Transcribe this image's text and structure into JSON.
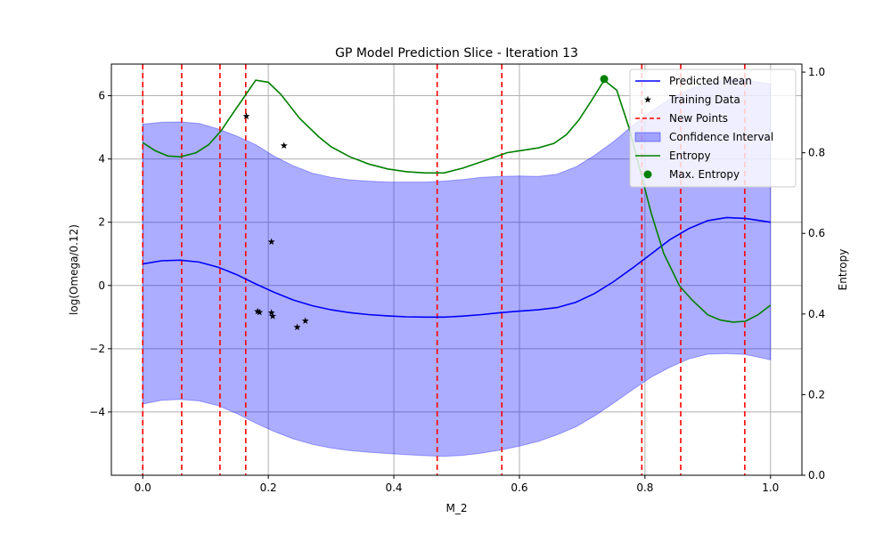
{
  "chart_data": {
    "type": "line",
    "title": "GP Model Prediction Slice - Iteration 13",
    "xlabel": "M_2",
    "ylabel": "log(Omega/0.12)",
    "y2label": "Entropy",
    "xlim": [
      -0.05,
      1.05
    ],
    "ylim": [
      -6.0,
      7.0
    ],
    "y2lim": [
      0.0,
      1.02
    ],
    "xticks": [
      0.0,
      0.2,
      0.4,
      0.6,
      0.8,
      1.0
    ],
    "xtick_labels": [
      "0.0",
      "0.2",
      "0.4",
      "0.6",
      "0.8",
      "1.0"
    ],
    "yticks": [
      -4,
      -2,
      0,
      2,
      4,
      6
    ],
    "ytick_labels": [
      "−4",
      "−2",
      "0",
      "2",
      "4",
      "6"
    ],
    "y2ticks": [
      0.0,
      0.2,
      0.4,
      0.6,
      0.8,
      1.0
    ],
    "y2tick_labels": [
      "0.0",
      "0.2",
      "0.4",
      "0.6",
      "0.8",
      "1.0"
    ],
    "grid": true,
    "legend_position": "top-right",
    "legend": [
      {
        "label": "Predicted Mean",
        "kind": "line",
        "color": "#0000ff"
      },
      {
        "label": "Training Data",
        "kind": "star",
        "color": "#000000"
      },
      {
        "label": "New Points",
        "kind": "dashed",
        "color": "#ff0000"
      },
      {
        "label": "Confidence Interval",
        "kind": "patch",
        "color": "#6666ff"
      },
      {
        "label": "Entropy",
        "kind": "line",
        "color": "#008000"
      },
      {
        "label": "Max. Entropy",
        "kind": "dot",
        "color": "#008000"
      }
    ],
    "x": [
      0.0,
      0.03,
      0.06,
      0.09,
      0.12,
      0.15,
      0.18,
      0.21,
      0.24,
      0.27,
      0.3,
      0.33,
      0.36,
      0.39,
      0.42,
      0.45,
      0.48,
      0.51,
      0.54,
      0.57,
      0.6,
      0.63,
      0.66,
      0.69,
      0.72,
      0.75,
      0.78,
      0.81,
      0.84,
      0.87,
      0.9,
      0.93,
      0.96,
      1.0
    ],
    "series": [
      {
        "name": "Predicted Mean",
        "color": "#0000ff",
        "values": [
          0.68,
          0.78,
          0.8,
          0.74,
          0.58,
          0.34,
          0.05,
          -0.22,
          -0.46,
          -0.64,
          -0.77,
          -0.86,
          -0.92,
          -0.96,
          -0.99,
          -1.0,
          -1.0,
          -0.97,
          -0.92,
          -0.86,
          -0.81,
          -0.77,
          -0.7,
          -0.53,
          -0.25,
          0.12,
          0.55,
          1.0,
          1.45,
          1.8,
          2.05,
          2.15,
          2.12,
          2.0
        ]
      },
      {
        "name": "Confidence Interval",
        "color": "#6666ff",
        "lower": [
          -3.75,
          -3.63,
          -3.6,
          -3.65,
          -3.8,
          -4.05,
          -4.35,
          -4.62,
          -4.85,
          -5.02,
          -5.14,
          -5.22,
          -5.27,
          -5.31,
          -5.35,
          -5.38,
          -5.4,
          -5.37,
          -5.3,
          -5.2,
          -5.08,
          -4.93,
          -4.72,
          -4.47,
          -4.12,
          -3.72,
          -3.3,
          -2.9,
          -2.58,
          -2.32,
          -2.17,
          -2.15,
          -2.18,
          -2.35
        ],
        "upper": [
          5.1,
          5.16,
          5.17,
          5.12,
          4.95,
          4.72,
          4.45,
          4.08,
          3.78,
          3.55,
          3.42,
          3.34,
          3.3,
          3.27,
          3.27,
          3.27,
          3.3,
          3.35,
          3.42,
          3.45,
          3.46,
          3.45,
          3.52,
          3.75,
          4.12,
          4.55,
          5.05,
          5.5,
          5.9,
          6.2,
          6.4,
          6.5,
          6.5,
          6.36
        ]
      },
      {
        "name": "Entropy",
        "color": "#008000",
        "axis": "right",
        "x": [
          0.0,
          0.02,
          0.04,
          0.06,
          0.085,
          0.105,
          0.125,
          0.14,
          0.16,
          0.18,
          0.2,
          0.22,
          0.25,
          0.28,
          0.3,
          0.33,
          0.36,
          0.39,
          0.42,
          0.45,
          0.48,
          0.51,
          0.55,
          0.58,
          0.6,
          0.63,
          0.655,
          0.675,
          0.695,
          0.715,
          0.735,
          0.755,
          0.775,
          0.79,
          0.81,
          0.83,
          0.855,
          0.875,
          0.9,
          0.92,
          0.94,
          0.96,
          0.98,
          1.0
        ],
        "values": [
          0.825,
          0.805,
          0.792,
          0.79,
          0.8,
          0.82,
          0.855,
          0.89,
          0.935,
          0.98,
          0.975,
          0.945,
          0.885,
          0.84,
          0.815,
          0.79,
          0.772,
          0.76,
          0.753,
          0.75,
          0.75,
          0.762,
          0.783,
          0.8,
          0.805,
          0.812,
          0.823,
          0.845,
          0.882,
          0.93,
          0.98,
          0.955,
          0.86,
          0.77,
          0.65,
          0.55,
          0.47,
          0.435,
          0.398,
          0.385,
          0.38,
          0.382,
          0.398,
          0.422
        ]
      }
    ],
    "training_data": {
      "x": [
        0.165,
        0.225,
        0.205,
        0.183,
        0.186,
        0.205,
        0.207,
        0.246,
        0.259
      ],
      "y": [
        5.35,
        4.42,
        1.38,
        -0.82,
        -0.85,
        -0.86,
        -0.97,
        -1.32,
        -1.12
      ]
    },
    "new_points": [
      0.0,
      0.062,
      0.123,
      0.164,
      0.469,
      0.572,
      0.795,
      0.857,
      0.959
    ],
    "max_entropy": {
      "x": 0.735,
      "y": 0.983
    }
  }
}
